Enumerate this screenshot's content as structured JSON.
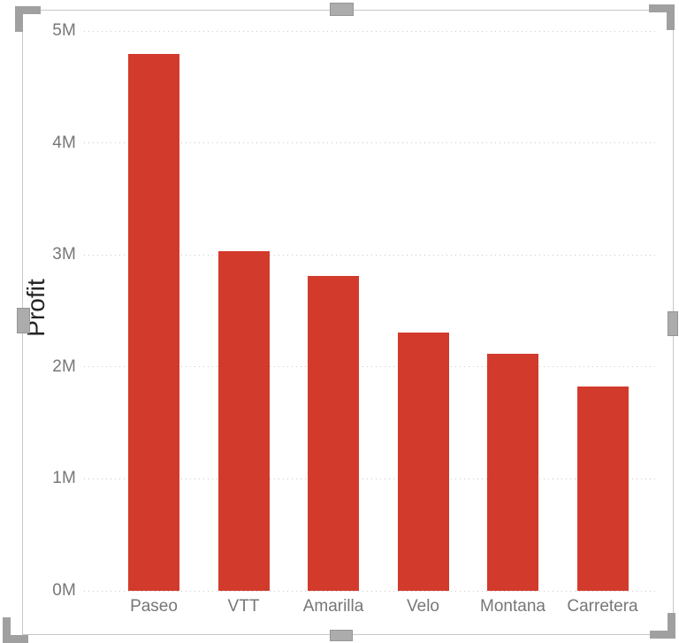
{
  "canvas": {
    "background": "#FFFFFF"
  },
  "visual": {
    "kind": "clustered-column-chart",
    "selected": true
  },
  "chart_data": {
    "type": "bar",
    "title": "",
    "xlabel": "",
    "ylabel": "Profit",
    "categories": [
      "Paseo",
      "VTT",
      "Amarilla",
      "Velo",
      "Montana",
      "Carretera"
    ],
    "values": [
      4797438,
      3034608,
      2814104,
      2305992,
      2114755,
      1826805
    ],
    "y_ticks": [
      {
        "label": "0M",
        "value": 0
      },
      {
        "label": "1M",
        "value": 1000000
      },
      {
        "label": "2M",
        "value": 2000000
      },
      {
        "label": "3M",
        "value": 3000000
      },
      {
        "label": "4M",
        "value": 4000000
      },
      {
        "label": "5M",
        "value": 5000000
      }
    ],
    "ylim": [
      0,
      5000000
    ],
    "grid": true,
    "gridline_style": "dotted",
    "legend_position": "none",
    "colors": {
      "bar": "#D23B2C",
      "tick_label": "#777777",
      "axis_title": "#252423",
      "gridline": "#CBCBCB"
    }
  },
  "selection_frame": {
    "border_color": "#C8C8C8",
    "handle_color": "#ACACAC",
    "handles": [
      "top-left",
      "top",
      "top-right",
      "right",
      "bottom-right",
      "bottom",
      "bottom-left",
      "left"
    ]
  }
}
